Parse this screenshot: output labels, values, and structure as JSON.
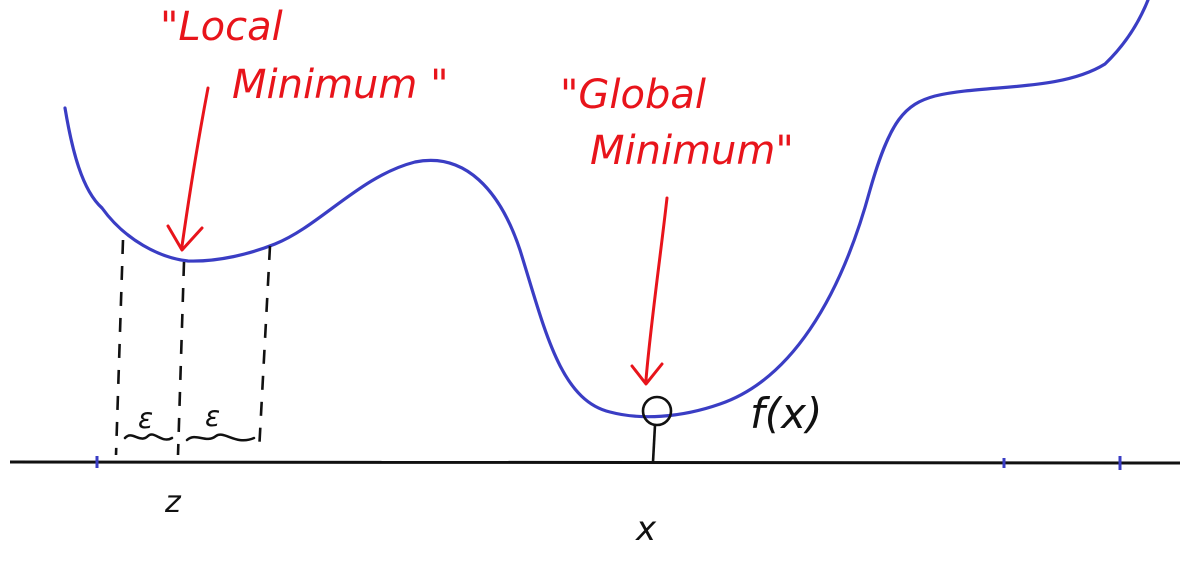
{
  "annotations": {
    "local_line1": "\"Local",
    "local_line2": "Minimum \"",
    "global_line1": "\"Global",
    "global_line2": "Minimum\""
  },
  "labels": {
    "epsilon_left": "ε",
    "epsilon_right": "ε",
    "z_label": "z",
    "x_label": "x",
    "fx_label": "f(x)"
  },
  "colors": {
    "curve": "#3a3dc4",
    "annotation": "#e8141b",
    "ink": "#111111"
  }
}
